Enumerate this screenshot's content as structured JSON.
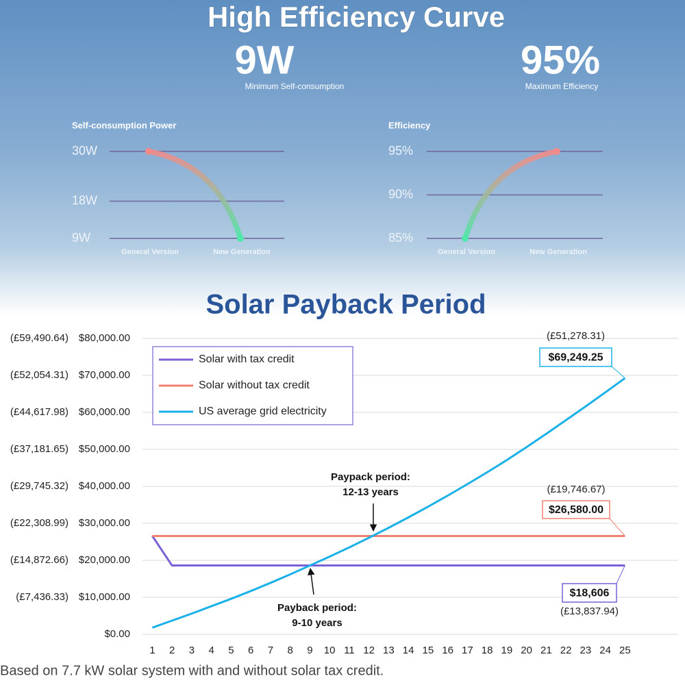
{
  "header": {
    "title": "High Efficiency Curve",
    "highlights": [
      {
        "value": "9W",
        "label": "Minimum Self-consumption"
      },
      {
        "value": "95%",
        "label": "Maximum Efficiency"
      }
    ]
  },
  "chart_data": [
    {
      "type": "curve",
      "title": "Self-consumption Power",
      "categories": [
        "General Version",
        "New Generation"
      ],
      "values": [
        30,
        9
      ],
      "ylim": [
        9,
        30
      ],
      "yticks": [
        {
          "value": 30,
          "label": "30W"
        },
        {
          "value": 18,
          "label": "18W"
        },
        {
          "value": 9,
          "label": "9W"
        }
      ],
      "colors": [
        "#f58a8a",
        "#4fe7aa"
      ],
      "grid": true
    },
    {
      "type": "curve",
      "title": "Efficiency",
      "categories": [
        "General Version",
        "New Generation"
      ],
      "values": [
        85,
        95
      ],
      "ylim": [
        85,
        95
      ],
      "yticks": [
        {
          "value": 95,
          "label": "95%"
        },
        {
          "value": 90,
          "label": "90%"
        },
        {
          "value": 85,
          "label": "85%"
        }
      ],
      "colors": [
        "#f58a8a",
        "#4fe7aa"
      ],
      "grid": true
    },
    {
      "type": "line",
      "title": "Solar Payback Period",
      "x": [
        1,
        2,
        3,
        4,
        5,
        6,
        7,
        8,
        9,
        10,
        11,
        12,
        13,
        14,
        15,
        16,
        17,
        18,
        19,
        20,
        21,
        22,
        23,
        24,
        25
      ],
      "xlim": [
        0.5,
        27.7
      ],
      "ylim": [
        0,
        80000
      ],
      "yticks": [
        {
          "value": 0,
          "label": "$0.00"
        },
        {
          "value": 10000,
          "label": "$10,000.00"
        },
        {
          "value": 20000,
          "label": "$20,000.00"
        },
        {
          "value": 30000,
          "label": "$30,000.00"
        },
        {
          "value": 40000,
          "label": "$40,000.00"
        },
        {
          "value": 50000,
          "label": "$50,000.00"
        },
        {
          "value": 60000,
          "label": "$60,000.00"
        },
        {
          "value": 70000,
          "label": "$70,000.00"
        },
        {
          "value": 80000,
          "label": "$80,000.00"
        }
      ],
      "y2lim": [
        0,
        59490.64
      ],
      "y2ticks": [
        {
          "value": 7436.33,
          "label": "(£7,436.33)"
        },
        {
          "value": 14872.66,
          "label": "(£14,872.66)"
        },
        {
          "value": 22308.99,
          "label": "(£22,308.99)"
        },
        {
          "value": 29745.32,
          "label": "(£29,745.32)"
        },
        {
          "value": 37181.65,
          "label": "(£37,181.65)"
        },
        {
          "value": 44617.98,
          "label": "(£44,617.98)"
        },
        {
          "value": 52054.31,
          "label": "(£52,054.31)"
        },
        {
          "value": 59490.64,
          "label": "(£59,490.64)"
        }
      ],
      "grid": true,
      "legend": "upper left",
      "series": [
        {
          "name": "Solar with tax credit",
          "color": "#7b5fd6",
          "values": [
            26580,
            18606,
            18606,
            18606,
            18606,
            18606,
            18606,
            18606,
            18606,
            18606,
            18606,
            18606,
            18606,
            18606,
            18606,
            18606,
            18606,
            18606,
            18606,
            18606,
            18606,
            18606,
            18606,
            18606,
            18606
          ],
          "value_labels": [
            null,
            null,
            null,
            null,
            null,
            null,
            null,
            null,
            null,
            null,
            null,
            null,
            null,
            null,
            null,
            null,
            null,
            null,
            null,
            null,
            null,
            null,
            null,
            null,
            "$18,606"
          ],
          "value_labels_gbp": [
            null,
            null,
            null,
            null,
            null,
            null,
            null,
            null,
            null,
            null,
            null,
            null,
            null,
            null,
            null,
            null,
            null,
            null,
            null,
            null,
            null,
            null,
            null,
            null,
            "(£13,837.94)"
          ]
        },
        {
          "name": "Solar without tax credit",
          "color": "#f08070",
          "values": [
            26580,
            26580,
            26580,
            26580,
            26580,
            26580,
            26580,
            26580,
            26580,
            26580,
            26580,
            26580,
            26580,
            26580,
            26580,
            26580,
            26580,
            26580,
            26580,
            26580,
            26580,
            26580,
            26580,
            26580,
            26580
          ],
          "value_labels": [
            null,
            null,
            null,
            null,
            null,
            null,
            null,
            null,
            null,
            null,
            null,
            null,
            null,
            null,
            null,
            null,
            null,
            null,
            null,
            null,
            null,
            null,
            null,
            null,
            "$26,580.00"
          ],
          "value_labels_gbp": [
            null,
            null,
            null,
            null,
            null,
            null,
            null,
            null,
            null,
            null,
            null,
            null,
            null,
            null,
            null,
            null,
            null,
            null,
            null,
            null,
            null,
            null,
            null,
            null,
            "(£19,746.67)"
          ]
        },
        {
          "name": "US average grid electricity",
          "color": "#1ab0e8",
          "values": [
            1800,
            3700,
            5600,
            7600,
            9600,
            11700,
            13900,
            16200,
            18600,
            21000,
            23500,
            26100,
            28800,
            31600,
            34500,
            37500,
            40600,
            43800,
            47100,
            50600,
            54200,
            57900,
            61600,
            65400,
            69249.25
          ],
          "value_labels": [
            null,
            null,
            null,
            null,
            null,
            null,
            null,
            null,
            null,
            null,
            null,
            null,
            null,
            null,
            null,
            null,
            null,
            null,
            null,
            null,
            null,
            null,
            null,
            null,
            "$69,249.25"
          ],
          "value_labels_gbp": [
            null,
            null,
            null,
            null,
            null,
            null,
            null,
            null,
            null,
            null,
            null,
            null,
            null,
            null,
            null,
            null,
            null,
            null,
            null,
            null,
            null,
            null,
            null,
            null,
            "(£51,278.31)"
          ]
        }
      ],
      "annotations": [
        {
          "lines": [
            "Paypack period:",
            "12-13 years"
          ]
        },
        {
          "lines": [
            "Payback period:",
            "9-10 years"
          ]
        }
      ]
    }
  ],
  "footnote": "Based on 7.7 kW solar system with and without solar tax credit."
}
